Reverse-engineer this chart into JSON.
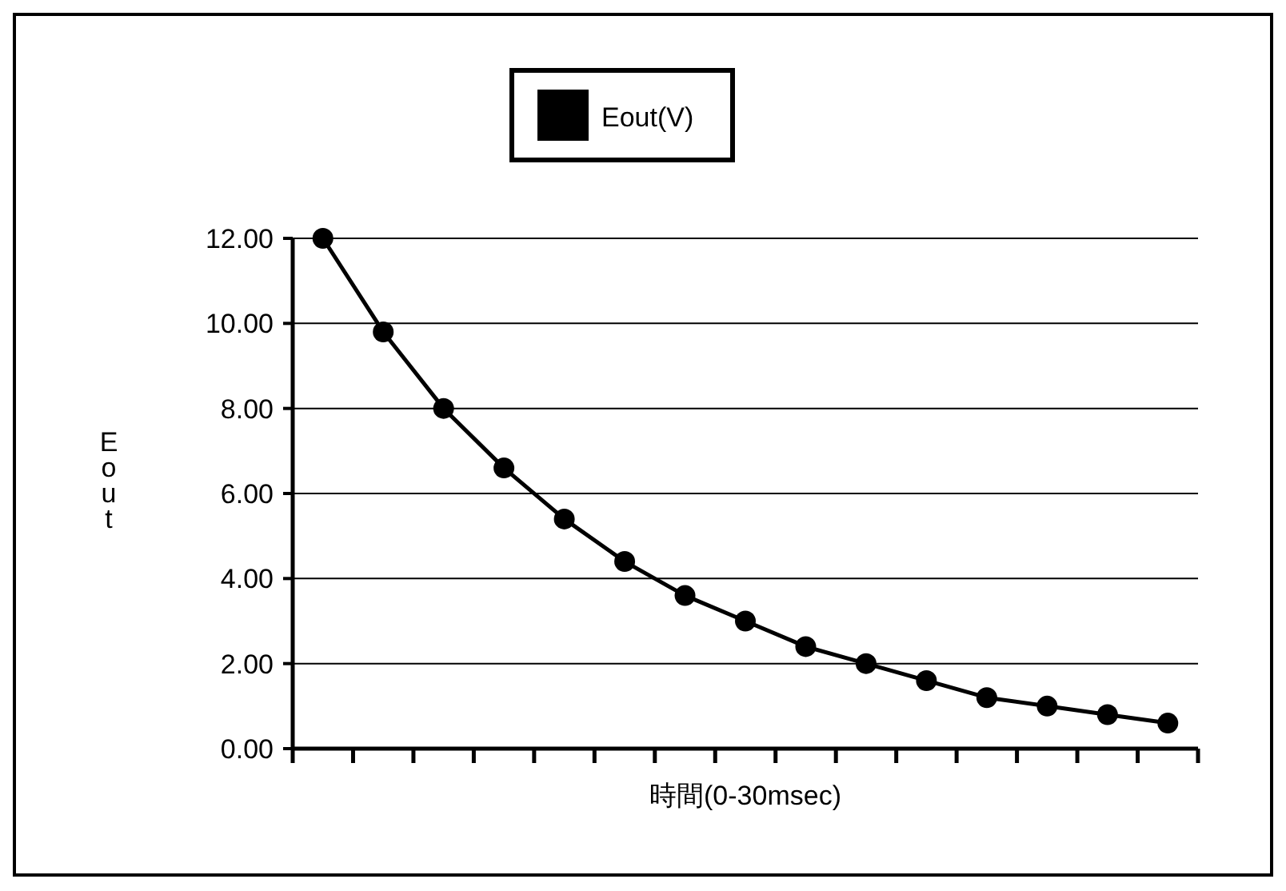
{
  "chart_data": {
    "type": "line",
    "xlabel": "時間(0-30msec)",
    "ylabel": "Eout",
    "categories": [
      null,
      null,
      null,
      null,
      null,
      null,
      null,
      null,
      null,
      null,
      null,
      null,
      null,
      null,
      null
    ],
    "series": [
      {
        "name": "Eout(V)",
        "color": "#000000",
        "values": [
          12.0,
          9.8,
          8.0,
          6.6,
          5.4,
          4.4,
          3.6,
          3.0,
          2.4,
          2.0,
          1.6,
          1.2,
          1.0,
          0.8,
          0.6
        ]
      }
    ],
    "ylim": [
      0,
      12
    ],
    "yticks": [
      {
        "value": 0,
        "label": "0.00"
      },
      {
        "value": 2,
        "label": "2.00"
      },
      {
        "value": 4,
        "label": "4.00"
      },
      {
        "value": 6,
        "label": "6.00"
      },
      {
        "value": 8,
        "label": "8.00"
      },
      {
        "value": 10,
        "label": "10.00"
      },
      {
        "value": 12,
        "label": "12.00"
      }
    ],
    "grid": "y",
    "legend": "top",
    "marker": "circle",
    "line_style": "solid"
  }
}
